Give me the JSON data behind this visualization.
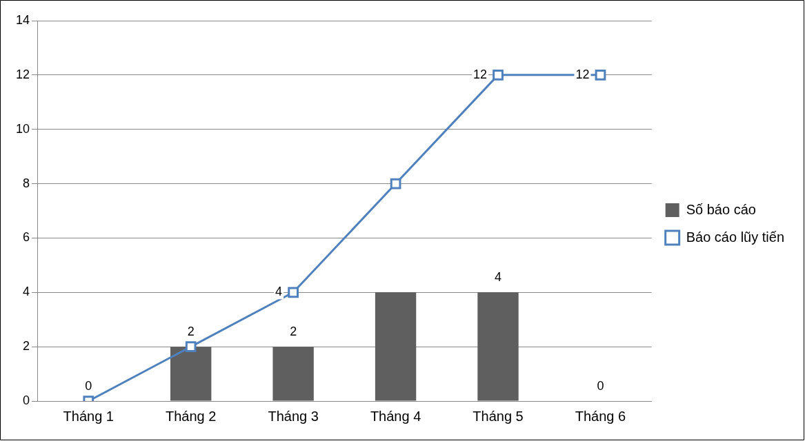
{
  "chart_data": {
    "type": "bar",
    "categories": [
      "Tháng 1",
      "Tháng 2",
      "Tháng 3",
      "Tháng 4",
      "Tháng 5",
      "Tháng 6"
    ],
    "series": [
      {
        "name": "Số báo cáo",
        "color": "#5f5f5f",
        "values": [
          0,
          2,
          2,
          4,
          4,
          0
        ],
        "value_labels": [
          "0",
          "2",
          "2",
          null,
          "4",
          "0"
        ]
      },
      {
        "name": "Báo cáo lũy tiến",
        "type": "line",
        "color": "#4f81bd",
        "values": [
          0,
          2,
          4,
          8,
          12,
          12
        ],
        "value_labels": [
          null,
          null,
          "4",
          null,
          "12",
          "12"
        ],
        "marker": "square"
      }
    ],
    "ylim": [
      0,
      14
    ],
    "yticks": [
      0,
      2,
      4,
      6,
      8,
      10,
      12,
      14
    ],
    "grid": "y",
    "legend": "right"
  }
}
